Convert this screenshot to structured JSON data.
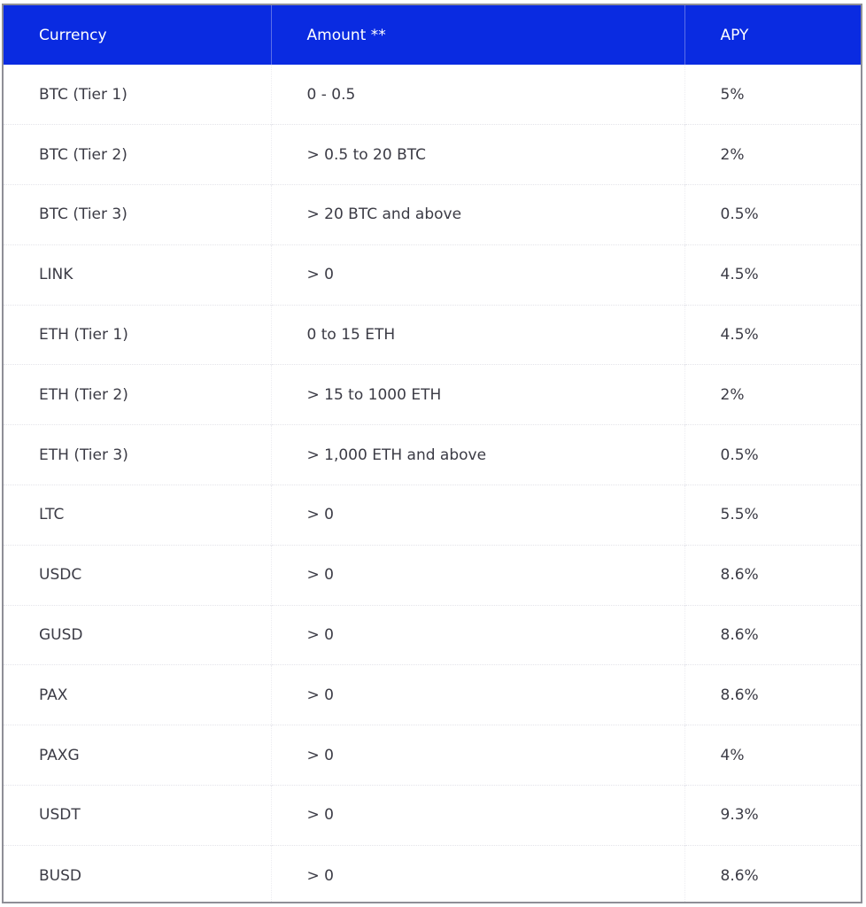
{
  "table": {
    "headers": {
      "currency": "Currency",
      "amount": "Amount **",
      "apy": "APY"
    },
    "rows": [
      {
        "currency": "BTC (Tier 1)",
        "amount": "0 - 0.5",
        "apy": "5%"
      },
      {
        "currency": "BTC (Tier 2)",
        "amount": "> 0.5 to 20 BTC",
        "apy": "2%"
      },
      {
        "currency": "BTC (Tier 3)",
        "amount": "> 20 BTC and above",
        "apy": "0.5%"
      },
      {
        "currency": "LINK",
        "amount": "> 0",
        "apy": "4.5%"
      },
      {
        "currency": "ETH (Tier 1)",
        "amount": "0 to 15 ETH",
        "apy": "4.5%"
      },
      {
        "currency": "ETH (Tier 2)",
        "amount": "> 15 to 1000 ETH",
        "apy": "2%"
      },
      {
        "currency": "ETH (Tier 3)",
        "amount": "> 1,000 ETH and above",
        "apy": "0.5%"
      },
      {
        "currency": "LTC",
        "amount": "> 0",
        "apy": "5.5%"
      },
      {
        "currency": "USDC",
        "amount": "> 0",
        "apy": "8.6%"
      },
      {
        "currency": "GUSD",
        "amount": "> 0",
        "apy": "8.6%"
      },
      {
        "currency": "PAX",
        "amount": "> 0",
        "apy": "8.6%"
      },
      {
        "currency": "PAXG",
        "amount": "> 0",
        "apy": "4%"
      },
      {
        "currency": "USDT",
        "amount": "> 0",
        "apy": "9.3%"
      },
      {
        "currency": "BUSD",
        "amount": "> 0",
        "apy": "8.6%"
      }
    ]
  },
  "colors": {
    "header_background": "#0a2be1",
    "header_text": "#ffffff",
    "body_text": "#3b3b45",
    "frame_border": "#8e8e96"
  }
}
